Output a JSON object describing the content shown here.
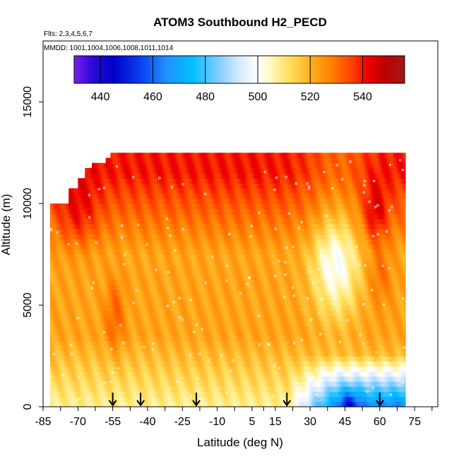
{
  "chart_data": {
    "type": "heatmap",
    "title": "ATOM3 Southbound H2_PECD",
    "flights_note": "Flts: 2,3,4,5,6,7",
    "dates_note": "MMDD: 1001,1004,1006,1008,1011,1014",
    "xlabel": "Latitude (deg N)",
    "ylabel": "Altitude (m)",
    "xlim": [
      -85,
      85
    ],
    "ylim": [
      0,
      18000
    ],
    "x_tick_values": [
      -85,
      -77.5,
      -70,
      -62.5,
      -55,
      -47.5,
      -40,
      -32.5,
      -25,
      -17.5,
      -10,
      -2.5,
      5,
      10,
      15,
      22.5,
      30,
      37.5,
      45,
      52.5,
      60,
      67.5,
      75,
      82.5
    ],
    "x_tick_labels": [
      {
        "value": -85,
        "label": "-85"
      },
      {
        "value": -70,
        "label": "-70"
      },
      {
        "value": -55,
        "label": "-55"
      },
      {
        "value": -40,
        "label": "-40"
      },
      {
        "value": -25,
        "label": "-25"
      },
      {
        "value": -10,
        "label": "-10"
      },
      {
        "value": 5,
        "label": "5"
      },
      {
        "value": 15,
        "label": "15"
      },
      {
        "value": 30,
        "label": "30"
      },
      {
        "value": 45,
        "label": "45"
      },
      {
        "value": 60,
        "label": "60"
      },
      {
        "value": 75,
        "label": "75"
      }
    ],
    "y_ticks": [
      {
        "value": 0,
        "label": "0"
      },
      {
        "value": 5000,
        "label": "5000"
      },
      {
        "value": 10000,
        "label": "10000"
      },
      {
        "value": 15000,
        "label": "15000"
      }
    ],
    "colorbar": {
      "range": [
        430,
        556
      ],
      "ticks": [
        {
          "value": 440,
          "label": "440"
        },
        {
          "value": 460,
          "label": "460"
        },
        {
          "value": 480,
          "label": "480"
        },
        {
          "value": 500,
          "label": "500"
        },
        {
          "value": 520,
          "label": "520"
        },
        {
          "value": 540,
          "label": "540"
        }
      ],
      "stops": [
        {
          "value": 430,
          "color": "#7a1ef0"
        },
        {
          "value": 437,
          "color": "#2a0ad8"
        },
        {
          "value": 445,
          "color": "#0000c8"
        },
        {
          "value": 455,
          "color": "#0a3cf0"
        },
        {
          "value": 465,
          "color": "#2090ff"
        },
        {
          "value": 475,
          "color": "#00bfff"
        },
        {
          "value": 485,
          "color": "#80ccff"
        },
        {
          "value": 492,
          "color": "#cde7ff"
        },
        {
          "value": 500,
          "color": "#ffffff"
        },
        {
          "value": 505,
          "color": "#fff8c0"
        },
        {
          "value": 512,
          "color": "#ffe060"
        },
        {
          "value": 520,
          "color": "#ffb020"
        },
        {
          "value": 528,
          "color": "#ff8000"
        },
        {
          "value": 536,
          "color": "#ff4000"
        },
        {
          "value": 542,
          "color": "#ee0000"
        },
        {
          "value": 548,
          "color": "#c00000"
        },
        {
          "value": 556,
          "color": "#a01818"
        }
      ]
    },
    "profile_markers": [
      -55,
      -43,
      -19,
      20,
      60
    ],
    "data_extent": {
      "lat_min": -82,
      "lat_max": 71,
      "alt_min": 0,
      "alt_max": 12500
    },
    "value_field_description": "H2 (ppb) curtain gridded by latitude and altitude"
  }
}
